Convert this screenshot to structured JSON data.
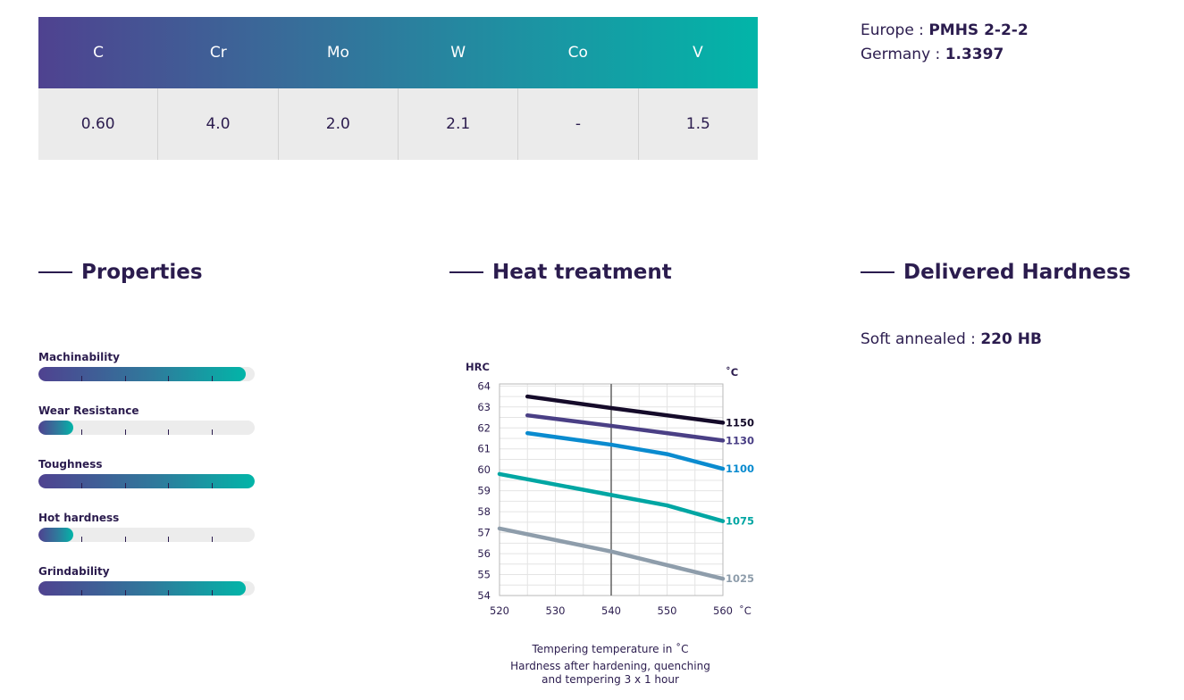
{
  "composition": {
    "headers": [
      "C",
      "Cr",
      "Mo",
      "W",
      "Co",
      "V"
    ],
    "values": [
      "0.60",
      "4.0",
      "2.0",
      "2.1",
      "-",
      "1.5"
    ]
  },
  "equivalents": {
    "europe_label": "Europe :",
    "europe_value": "PMHS 2-2-2",
    "germany_label": "Germany :",
    "germany_value": "1.3397"
  },
  "sections": {
    "properties": "Properties",
    "heat_treatment": "Heat treatment",
    "delivered_hardness": "Delivered Hardness"
  },
  "properties": [
    {
      "label": "Machinability",
      "level": 0.96
    },
    {
      "label": "Wear Resistance",
      "level": 0.16
    },
    {
      "label": "Toughness",
      "level": 1.0
    },
    {
      "label": "Hot hardness",
      "level": 0.16
    },
    {
      "label": "Grindability",
      "level": 0.96
    }
  ],
  "delivered": {
    "label": "Soft annealed :",
    "value": "220 HB"
  },
  "chart_data": {
    "type": "line",
    "ylabel": "HRC",
    "series_unit": "˚C",
    "x_unit": "˚C",
    "x_ticks": [
      520,
      530,
      540,
      550,
      560
    ],
    "y_ticks": [
      54,
      55,
      56,
      57,
      58,
      59,
      60,
      61,
      62,
      63,
      64
    ],
    "xlim": [
      520,
      560
    ],
    "ylim": [
      54,
      64.1
    ],
    "grid": true,
    "reference_line_x": 540,
    "series": [
      {
        "name": "1150",
        "color": "#150b2a",
        "x": [
          525,
          540,
          560
        ],
        "y": [
          63.5,
          62.95,
          62.25
        ]
      },
      {
        "name": "1130",
        "color": "#4a3f85",
        "x": [
          525,
          540,
          560
        ],
        "y": [
          62.6,
          62.1,
          61.4
        ]
      },
      {
        "name": "1100",
        "color": "#0a8bcf",
        "x": [
          525,
          540,
          550,
          560
        ],
        "y": [
          61.75,
          61.2,
          60.75,
          60.05
        ]
      },
      {
        "name": "1075",
        "color": "#00a6a3",
        "x": [
          520,
          540,
          550,
          560
        ],
        "y": [
          59.8,
          58.8,
          58.3,
          57.55
        ]
      },
      {
        "name": "1025",
        "color": "#8e9dab",
        "x": [
          520,
          540,
          560
        ],
        "y": [
          57.2,
          56.1,
          54.8
        ]
      }
    ]
  },
  "caption": {
    "line1": "Tempering temperature in ˚C",
    "line2": "Hardness after hardening, quenching",
    "line3": "and tempering 3 x 1 hour"
  }
}
